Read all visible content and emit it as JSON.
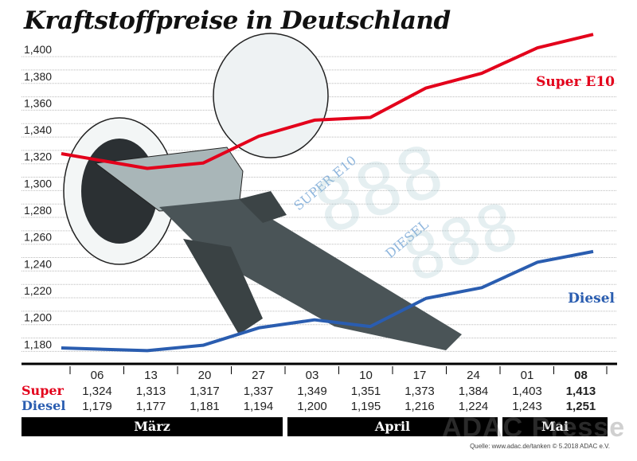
{
  "chart_data": {
    "type": "line",
    "title": "Kraftstoffpreise in Deutschland",
    "categories": [
      "06",
      "13",
      "20",
      "27",
      "03",
      "10",
      "17",
      "24",
      "01",
      "08"
    ],
    "months": [
      {
        "label": "März",
        "span": 4
      },
      {
        "label": "April",
        "span": 4
      },
      {
        "label": "Mai",
        "span": 2
      }
    ],
    "row_labels": {
      "super": "Super",
      "diesel": "Diesel"
    },
    "series": [
      {
        "name": "Super E10",
        "row_label": "Super",
        "color": "#e3001b",
        "values": [
          1.324,
          1.313,
          1.317,
          1.337,
          1.349,
          1.351,
          1.373,
          1.384,
          1.403,
          1.413
        ],
        "labels": [
          "1,324",
          "1,313",
          "1,317",
          "1,337",
          "1,349",
          "1,351",
          "1,373",
          "1,384",
          "1,403",
          "1,413"
        ]
      },
      {
        "name": "Diesel",
        "row_label": "Diesel",
        "color": "#2a5db0",
        "values": [
          1.179,
          1.177,
          1.181,
          1.194,
          1.2,
          1.195,
          1.216,
          1.224,
          1.243,
          1.251
        ],
        "labels": [
          "1,179",
          "1,177",
          "1,181",
          "1,194",
          "1,200",
          "1,195",
          "1,216",
          "1,224",
          "1,243",
          "1,251"
        ]
      }
    ],
    "yticks": [
      "1,180",
      "1,200",
      "1,220",
      "1,240",
      "1,260",
      "1,280",
      "1,300",
      "1,320",
      "1,340",
      "1,360",
      "1,380",
      "1,400"
    ],
    "ytick_values": [
      1.18,
      1.2,
      1.22,
      1.24,
      1.26,
      1.28,
      1.3,
      1.32,
      1.34,
      1.36,
      1.38,
      1.4
    ],
    "ylim": [
      1.175,
      1.41
    ],
    "grid": true,
    "illustration_text": [
      "SUPER E10",
      "DIESEL"
    ]
  },
  "source": "Quelle: www.adac.de/tanken  © 5.2018 ADAC e.V.",
  "watermark": "ADAC Presse"
}
